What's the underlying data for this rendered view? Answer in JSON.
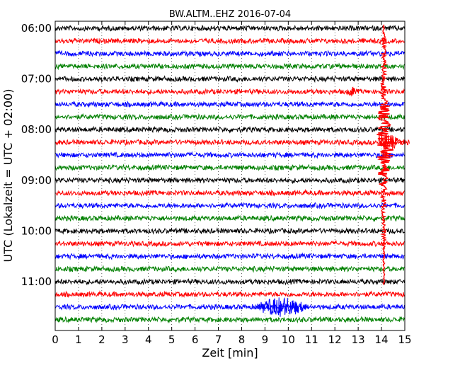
{
  "chart_data": {
    "type": "line",
    "title": "BW.ALTM..EHZ 2016-07-04",
    "xlabel": "Zeit  [min]",
    "ylabel": "UTC (Lokalzeit = UTC + 02:00)",
    "xlim": [
      0,
      15
    ],
    "x_ticks": [
      "0",
      "1",
      "2",
      "3",
      "4",
      "5",
      "6",
      "7",
      "8",
      "9",
      "10",
      "11",
      "12",
      "13",
      "14",
      "15"
    ],
    "y_tick_labels": [
      "06:00",
      "07:00",
      "08:00",
      "09:00",
      "10:00",
      "11:00"
    ],
    "grid": "vertical dotted lines at each minute",
    "trace_interval_minutes": 15,
    "trace_start_times": [
      "06:00",
      "06:15",
      "06:30",
      "06:45",
      "07:00",
      "07:15",
      "07:30",
      "07:45",
      "08:00",
      "08:15",
      "08:30",
      "08:45",
      "09:00",
      "09:15",
      "09:30",
      "09:45",
      "10:00",
      "10:15",
      "10:30",
      "10:45",
      "11:00",
      "11:15",
      "11:30",
      "11:45"
    ],
    "trace_colors": [
      "#000000",
      "#ff0000",
      "#0000ff",
      "#008000"
    ],
    "events": [
      {
        "description": "large earthquake signal",
        "x_start_min": 14.0,
        "x_end_min": 14.35,
        "peak_trace": "08:15"
      },
      {
        "description": "small signal",
        "x_start_min": 12.5,
        "x_end_min": 12.9,
        "trace": "07:15"
      },
      {
        "description": "noise burst",
        "x_start_min": 8.6,
        "x_end_min": 10.8,
        "trace": "11:30"
      }
    ]
  }
}
